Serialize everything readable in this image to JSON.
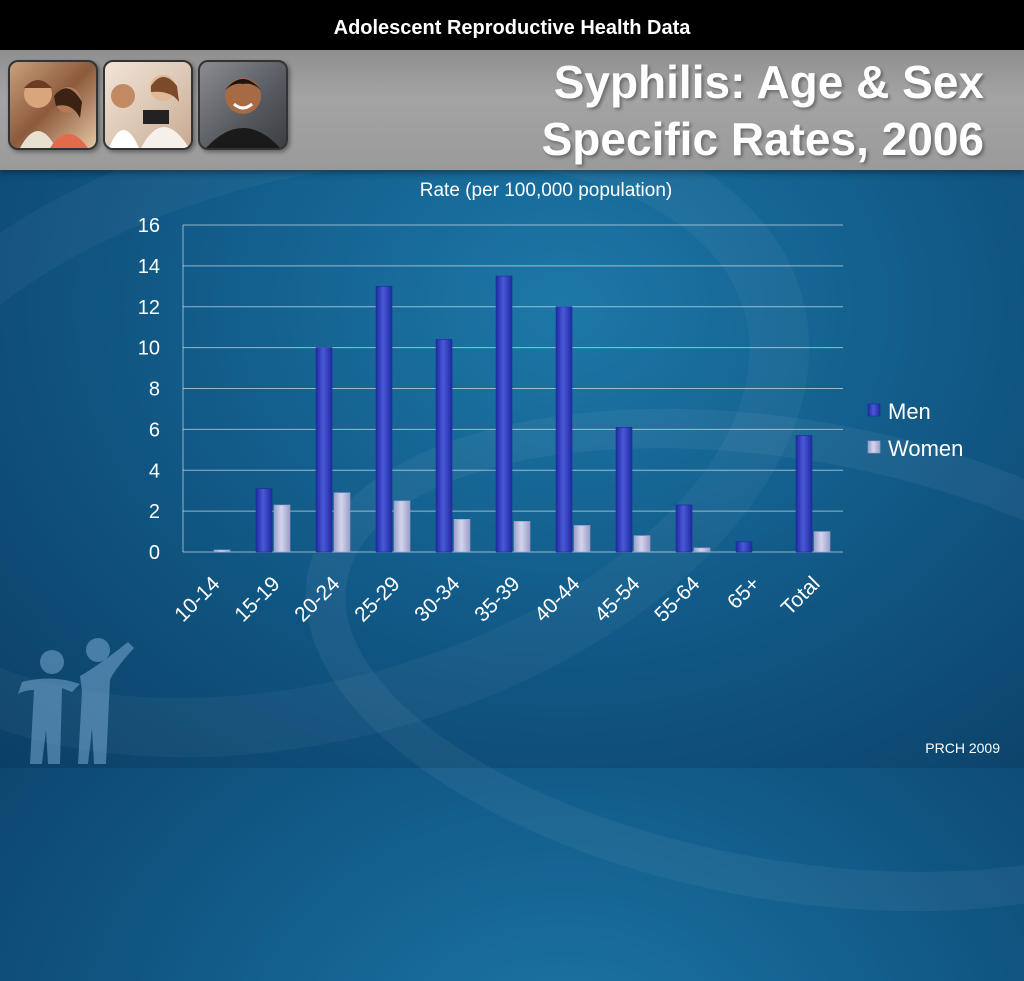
{
  "topbar": {
    "title": "Adolescent Reproductive Health Data"
  },
  "header": {
    "title_line1": "Syphilis: Age & Sex",
    "title_line2": "Specific Rates, 2006"
  },
  "footer": {
    "credit": "PRCH 2009"
  },
  "colors": {
    "men": "#1e2a9e",
    "women": "#9a9ec8",
    "header_bg": "#9a9a9a",
    "background": "#125c8a"
  },
  "icons": {
    "logo": "family-figures-icon",
    "photos": [
      "teen-couple-photo",
      "teen-weighing-photo",
      "teen-boy-photo"
    ]
  },
  "chart_data": {
    "type": "bar",
    "title": "Rate (per 100,000 population)",
    "categories": [
      "10-14",
      "15-19",
      "20-24",
      "25-29",
      "30-34",
      "35-39",
      "40-44",
      "45-54",
      "55-64",
      "65+",
      "Total"
    ],
    "series": [
      {
        "name": "Men",
        "values": [
          0,
          3.1,
          10,
          13,
          10.4,
          13.5,
          12,
          6.1,
          2.3,
          0.5,
          5.7
        ]
      },
      {
        "name": "Women",
        "values": [
          0.1,
          2.3,
          2.9,
          2.5,
          1.6,
          1.5,
          1.3,
          0.8,
          0.2,
          0,
          1.0
        ]
      }
    ],
    "ylim": [
      0,
      16
    ],
    "yticks": [
      0,
      2,
      4,
      6,
      8,
      10,
      12,
      14,
      16
    ],
    "grid": true,
    "legend": "right"
  }
}
